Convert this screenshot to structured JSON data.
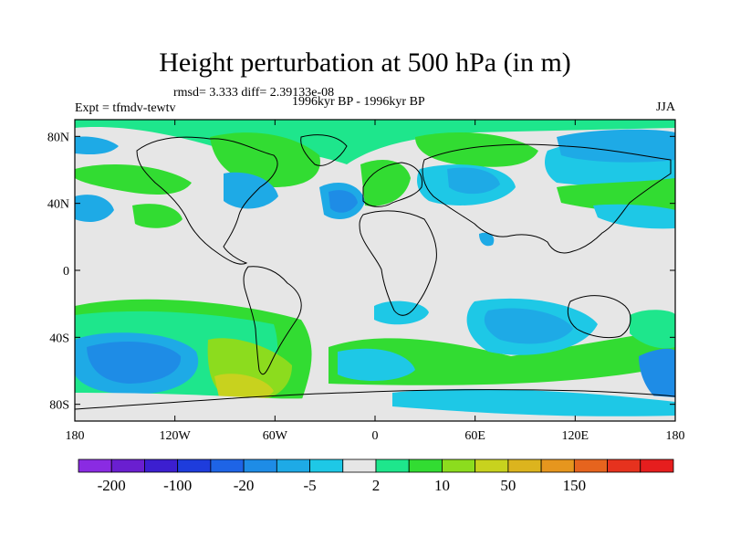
{
  "title": "Height perturbation at 500 hPa (in m)",
  "stats_line": "rmsd= 3.333 diff= 2.39133e-08",
  "experiment": "Expt = tfmdv-tewtv",
  "period": "1996kyr BP - 1996kyr BP",
  "season": "JJA",
  "map": {
    "lon_range": [
      -180,
      180
    ],
    "lat_range": [
      -90,
      90
    ],
    "lat_ticks": [
      {
        "value": 80,
        "label": "80N"
      },
      {
        "value": 40,
        "label": "40N"
      },
      {
        "value": 0,
        "label": "0"
      },
      {
        "value": -40,
        "label": "40S"
      },
      {
        "value": -80,
        "label": "80S"
      }
    ],
    "lon_ticks": [
      {
        "value": -180,
        "label": "180"
      },
      {
        "value": -120,
        "label": "120W"
      },
      {
        "value": -60,
        "label": "60W"
      },
      {
        "value": 0,
        "label": "0"
      },
      {
        "value": 60,
        "label": "60E"
      },
      {
        "value": 120,
        "label": "120E"
      },
      {
        "value": 180,
        "label": "180"
      }
    ],
    "background_color": "#e6e6e6"
  },
  "colorbar": {
    "colors": [
      "#8a2be2",
      "#6a1fd0",
      "#3c1fd0",
      "#1e3cdc",
      "#1e64e6",
      "#1e8ce6",
      "#1eaae6",
      "#1ec8e6",
      "#e6e6e6",
      "#1ee68c",
      "#32dc32",
      "#8cdc1e",
      "#c8d21e",
      "#dcb41e",
      "#e6961e",
      "#e6641e",
      "#e6321e",
      "#e61e1e"
    ],
    "labels": [
      "-200",
      "-100",
      "-20",
      "-5",
      "2",
      "10",
      "50",
      "150"
    ]
  }
}
